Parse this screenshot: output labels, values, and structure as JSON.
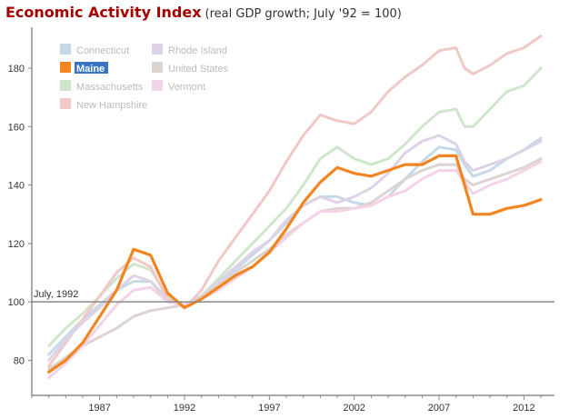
{
  "header": {
    "title": "Economic Activity Index",
    "subtitle": "(real GDP growth; July '92 = 100)"
  },
  "reference_line": {
    "label": "July, 1992",
    "value": 100
  },
  "highlighted_series": "Maine",
  "chart_data": {
    "type": "line",
    "title": "Economic Activity Index",
    "subtitle": "(real GDP growth; July '92 = 100)",
    "xlabel": "",
    "ylabel": "",
    "xlim": [
      1983,
      2013.8
    ],
    "ylim": [
      68,
      194
    ],
    "xticks": [
      1987,
      1992,
      1997,
      2002,
      2007,
      2012
    ],
    "yticks": [
      80,
      100,
      120,
      140,
      160,
      180
    ],
    "grid": false,
    "legend": "top-left, two columns",
    "x": [
      1984,
      1985,
      1986,
      1987,
      1988,
      1989,
      1990,
      1991,
      1992,
      1993,
      1994,
      1995,
      1996,
      1997,
      1998,
      1999,
      2000,
      2001,
      2002,
      2003,
      2004,
      2005,
      2006,
      2007,
      2008,
      2008.5,
      2009,
      2010,
      2011,
      2012,
      2013
    ],
    "series": [
      {
        "name": "Connecticut",
        "color": "#c6d9e8",
        "values": [
          82,
          88,
          94,
          99,
          104,
          107,
          107,
          101,
          99,
          102,
          107,
          111,
          116,
          121,
          127,
          133,
          136,
          136,
          134,
          133,
          136,
          142,
          148,
          153,
          152,
          147,
          143,
          145,
          149,
          152,
          156
        ]
      },
      {
        "name": "Maine",
        "color": "#f28520",
        "values": [
          76,
          80,
          86,
          95,
          104,
          118,
          116,
          103,
          98,
          101,
          105,
          109,
          112,
          117,
          125,
          134,
          141,
          146,
          144,
          143,
          145,
          147,
          147,
          150,
          150,
          140,
          130,
          130,
          132,
          133,
          135
        ]
      },
      {
        "name": "Massachusetts",
        "color": "#cfe6cd",
        "values": [
          85,
          91,
          96,
          102,
          108,
          113,
          111,
          102,
          99,
          102,
          108,
          114,
          120,
          126,
          132,
          140,
          149,
          153,
          149,
          147,
          149,
          154,
          160,
          165,
          166,
          160,
          160,
          166,
          172,
          174,
          180
        ]
      },
      {
        "name": "New Hampshire",
        "color": "#f0c9c7",
        "values": [
          78,
          86,
          94,
          102,
          110,
          115,
          112,
          101,
          98,
          104,
          114,
          122,
          130,
          138,
          148,
          157,
          164,
          162,
          161,
          165,
          172,
          177,
          181,
          186,
          187,
          180,
          178,
          181,
          185,
          187,
          191
        ]
      },
      {
        "name": "Rhode Island",
        "color": "#ded3e6",
        "values": [
          80,
          87,
          93,
          98,
          104,
          109,
          107,
          100,
          99,
          102,
          107,
          112,
          117,
          121,
          128,
          133,
          136,
          134,
          136,
          139,
          144,
          151,
          155,
          157,
          154,
          148,
          145,
          147,
          149,
          152,
          155
        ]
      },
      {
        "name": "United States",
        "color": "#dcd4d0",
        "values": [
          77,
          81,
          85,
          88,
          91,
          95,
          97,
          98,
          99,
          102,
          106,
          110,
          114,
          118,
          123,
          127,
          131,
          132,
          132,
          134,
          138,
          142,
          145,
          147,
          147,
          142,
          140,
          142,
          144,
          146,
          149
        ]
      },
      {
        "name": "Vermont",
        "color": "#f2d3e7",
        "values": [
          74,
          79,
          85,
          92,
          99,
          104,
          105,
          100,
          99,
          101,
          104,
          108,
          112,
          117,
          122,
          127,
          131,
          131,
          132,
          133,
          136,
          138,
          142,
          145,
          145,
          141,
          137,
          140,
          142,
          145,
          148
        ]
      }
    ]
  }
}
